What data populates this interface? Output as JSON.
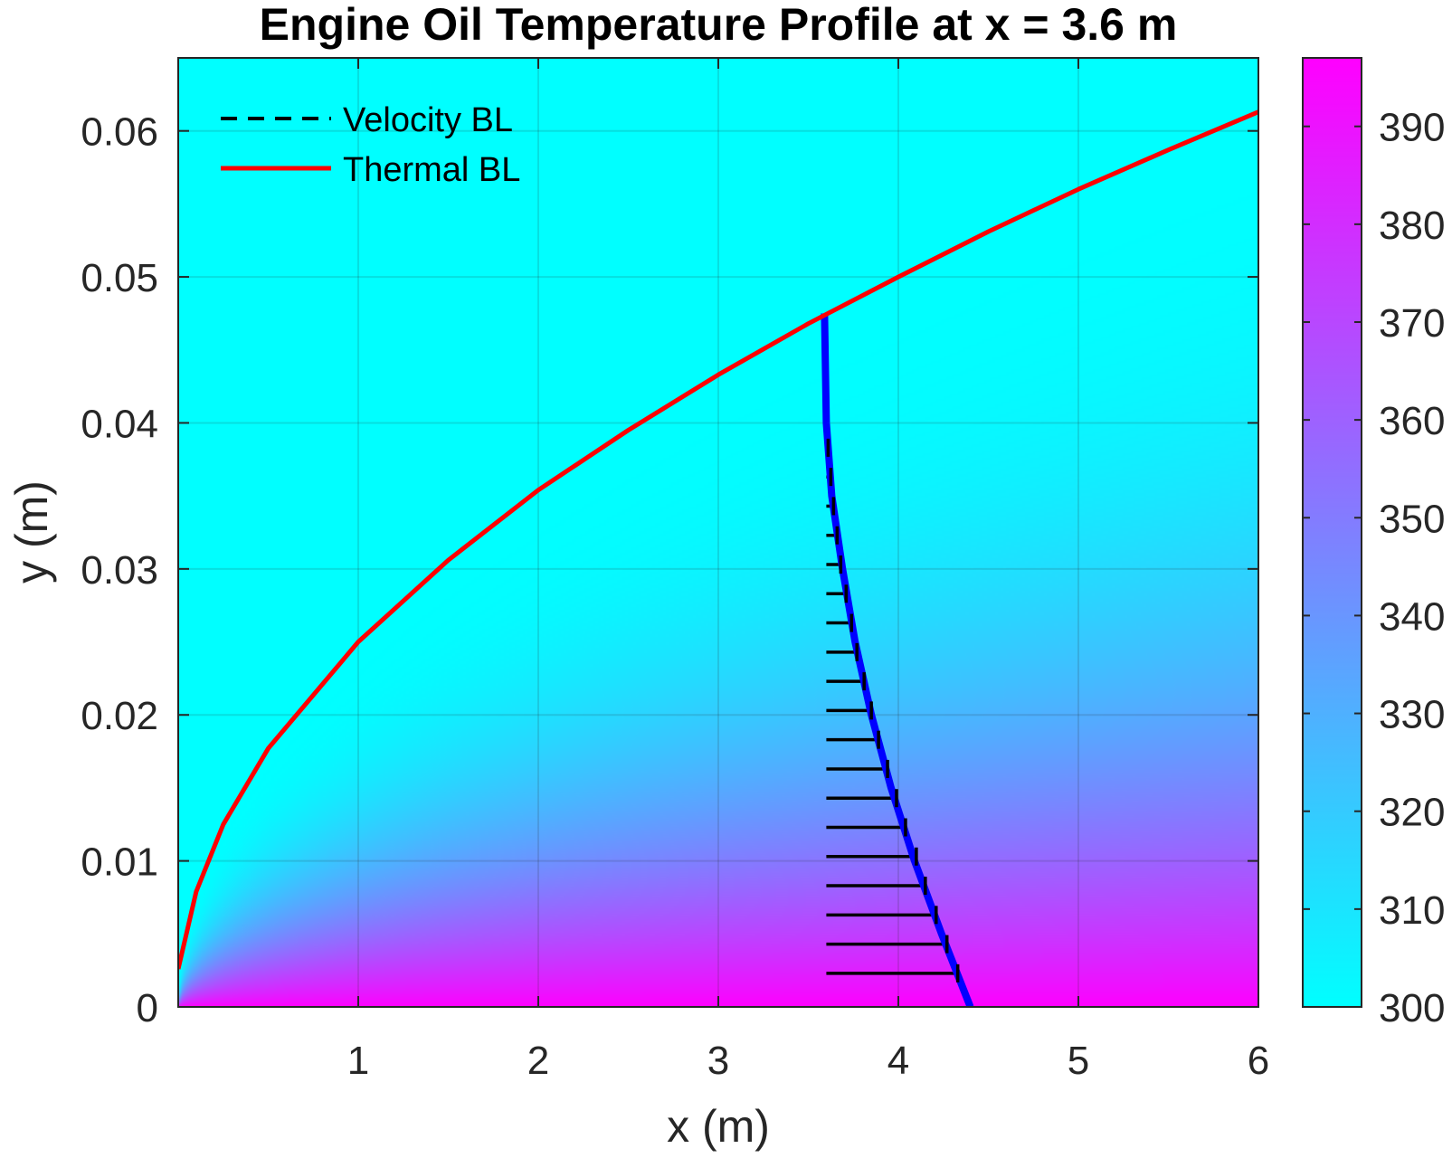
{
  "chart_data": {
    "type": "heatmap",
    "title": "Engine Oil Temperature Profile at x = 3.6 m",
    "xlabel": "x (m)",
    "ylabel": "y (m)",
    "xlim": [
      0,
      6
    ],
    "ylim": [
      0,
      0.065
    ],
    "xticks": [
      "1",
      "2",
      "3",
      "4",
      "5",
      "6"
    ],
    "yticks": [
      "0",
      "0.01",
      "0.02",
      "0.03",
      "0.04",
      "0.05",
      "0.06"
    ],
    "grid": true,
    "colorbar": {
      "range": [
        300,
        397
      ],
      "ticks": [
        "300",
        "310",
        "320",
        "330",
        "340",
        "350",
        "360",
        "370",
        "380",
        "390"
      ],
      "color_low": "#00ffff",
      "color_high": "#ff00ff"
    },
    "legend": {
      "placement": "top-left",
      "entries": [
        {
          "label": "Velocity BL",
          "color": "#000000",
          "style": "dashed"
        },
        {
          "label": "Thermal BL",
          "color": "#ff0000",
          "style": "solid"
        }
      ]
    },
    "series": [
      {
        "label_ref": "Thermal BL",
        "color": "#ff0000",
        "x": [
          0,
          0.1,
          0.25,
          0.5,
          1,
          1.5,
          2,
          2.5,
          3,
          3.5,
          4,
          4.5,
          5,
          5.5,
          6
        ],
        "y": [
          0.0026,
          0.0079,
          0.0125,
          0.0177,
          0.025,
          0.0306,
          0.0354,
          0.0395,
          0.0433,
          0.0468,
          0.05,
          0.0531,
          0.056,
          0.0587,
          0.0613
        ]
      }
    ],
    "profile": {
      "x_station": 3.6,
      "color": "#0000ff",
      "arrow_color": "#000000",
      "y": [
        0.0023,
        0.0043,
        0.0063,
        0.0083,
        0.0103,
        0.0123,
        0.0143,
        0.0163,
        0.0183,
        0.0203,
        0.0223,
        0.0243,
        0.0263,
        0.0283,
        0.0303,
        0.0323,
        0.0343,
        0.0363,
        0.0383
      ],
      "x_end": [
        4.33,
        4.27,
        4.21,
        4.15,
        4.1,
        4.04,
        3.99,
        3.94,
        3.89,
        3.85,
        3.81,
        3.77,
        3.74,
        3.71,
        3.68,
        3.66,
        3.64,
        3.625,
        3.61
      ],
      "curve_y": [
        0,
        0.005,
        0.01,
        0.015,
        0.02,
        0.025,
        0.03,
        0.035,
        0.04,
        0.0475
      ],
      "curve_x": [
        4.4,
        4.24,
        4.09,
        3.96,
        3.85,
        3.76,
        3.69,
        3.63,
        3.6,
        3.59
      ]
    }
  }
}
